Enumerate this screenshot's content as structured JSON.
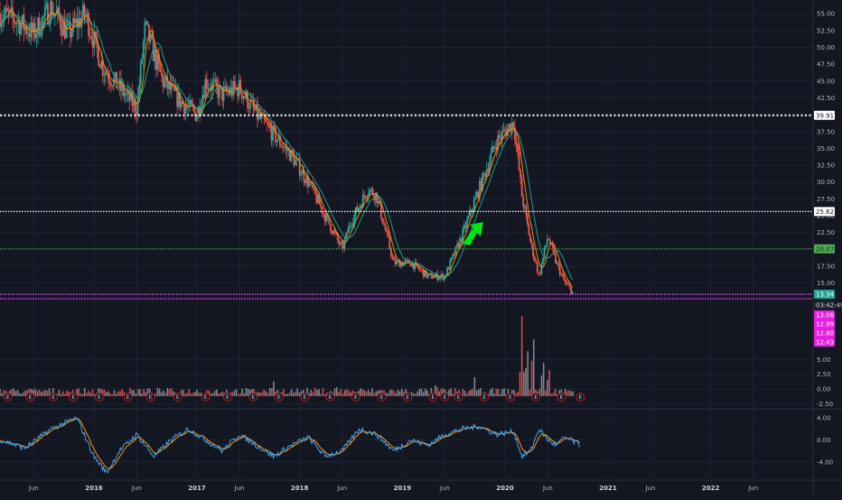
{
  "colors": {
    "background": "#131722",
    "grid": "#1f2330",
    "candle_up": "#26a69a",
    "candle_down": "#ef5350",
    "ma_fast": "#ff9800",
    "ma_slow": "#26a69a",
    "resistance_line": "#ffffff",
    "support_line": "#4caf50",
    "current_line": "#e040fb",
    "arrow": "#00e614",
    "vol_up": "#9598a1",
    "vol_down": "#ef5350",
    "osc_fast": "#42a5f5",
    "osc_slow": "#ff9800",
    "tag_magenta": "#e91ee3",
    "tag_teal": "#26a69a",
    "earnings_badge": "#b71c1c"
  },
  "chart_data": [
    {
      "type": "candlestick",
      "price_axis": {
        "ylim": [
          12.0,
          56.5
        ],
        "ticks": [
          "55.00",
          "52.50",
          "50.00",
          "47.50",
          "45.00",
          "42.50",
          "40.00",
          "37.50",
          "35.00",
          "32.50",
          "30.00",
          "27.50",
          "25.00",
          "22.50",
          "20.00",
          "17.50",
          "15.00"
        ],
        "tick_values": [
          55,
          52.5,
          50,
          47.5,
          45,
          42.5,
          40,
          37.5,
          35,
          32.5,
          30,
          27.5,
          25,
          22.5,
          20,
          17.5,
          15
        ]
      },
      "time_axis": {
        "xlim": [
          "2015-02-01",
          "2022-12-31"
        ],
        "labels": [
          {
            "text": "Jun",
            "date": "2015-06-01",
            "bold": false
          },
          {
            "text": "2016",
            "date": "2016-01-01",
            "bold": true
          },
          {
            "text": "Jun",
            "date": "2016-06-01",
            "bold": false
          },
          {
            "text": "2017",
            "date": "2017-01-01",
            "bold": true
          },
          {
            "text": "Jun",
            "date": "2017-06-01",
            "bold": false
          },
          {
            "text": "2018",
            "date": "2018-01-01",
            "bold": true
          },
          {
            "text": "Jun",
            "date": "2018-06-01",
            "bold": false
          },
          {
            "text": "2019",
            "date": "2019-01-01",
            "bold": true
          },
          {
            "text": "Jun",
            "date": "2019-06-01",
            "bold": false
          },
          {
            "text": "2020",
            "date": "2020-01-01",
            "bold": true
          },
          {
            "text": "Jun",
            "date": "2020-06-01",
            "bold": false
          },
          {
            "text": "2021",
            "date": "2021-01-01",
            "bold": true
          },
          {
            "text": "Jun",
            "date": "2021-06-01",
            "bold": false
          },
          {
            "text": "2022",
            "date": "2022-01-01",
            "bold": true
          },
          {
            "text": "Jun",
            "date": "2022-06-01",
            "bold": false
          }
        ]
      },
      "price_path": [
        [
          "2015-02-01",
          55
        ],
        [
          "2015-04-01",
          54
        ],
        [
          "2015-06-01",
          52
        ],
        [
          "2015-08-01",
          56
        ],
        [
          "2015-10-01",
          52
        ],
        [
          "2015-12-01",
          55
        ],
        [
          "2016-02-01",
          47
        ],
        [
          "2016-04-01",
          44
        ],
        [
          "2016-06-01",
          41
        ],
        [
          "2016-07-01",
          53
        ],
        [
          "2016-09-01",
          45
        ],
        [
          "2016-11-01",
          42
        ],
        [
          "2017-01-01",
          40
        ],
        [
          "2017-02-01",
          45
        ],
        [
          "2017-04-01",
          43
        ],
        [
          "2017-06-01",
          44
        ],
        [
          "2017-08-01",
          40
        ],
        [
          "2017-10-01",
          37
        ],
        [
          "2017-12-01",
          34
        ],
        [
          "2018-02-01",
          30
        ],
        [
          "2018-04-01",
          25
        ],
        [
          "2018-06-01",
          20
        ],
        [
          "2018-07-01",
          24
        ],
        [
          "2018-09-01",
          29
        ],
        [
          "2018-10-01",
          28
        ],
        [
          "2018-12-01",
          18
        ],
        [
          "2019-02-01",
          18
        ],
        [
          "2019-04-01",
          16
        ],
        [
          "2019-06-01",
          16
        ],
        [
          "2019-08-01",
          22
        ],
        [
          "2019-10-01",
          29
        ],
        [
          "2019-12-01",
          36
        ],
        [
          "2020-02-01",
          39
        ],
        [
          "2020-03-01",
          28
        ],
        [
          "2020-04-01",
          21
        ],
        [
          "2020-05-01",
          16
        ],
        [
          "2020-06-01",
          22
        ],
        [
          "2020-07-01",
          18
        ],
        [
          "2020-08-01",
          15
        ],
        [
          "2020-09-01",
          13.5
        ]
      ],
      "levels": [
        {
          "value": 39.91,
          "label": "39.91",
          "style": "resistance"
        },
        {
          "value": 25.62,
          "label": "25.62",
          "style": "resistance"
        },
        {
          "value": 20.07,
          "label": "20.07",
          "style": "support"
        },
        {
          "value": 13.34,
          "label": "13.34",
          "style": "current"
        }
      ],
      "current_price": {
        "value": 13.34,
        "label": "13.34",
        "countdown": "03:42:49"
      },
      "level_tags": [
        {
          "value": 12.2,
          "label": "13.06"
        },
        {
          "value": 11.4,
          "label": "12.99"
        },
        {
          "value": 10.6,
          "label": "12.80"
        },
        {
          "value": 9.8,
          "label": "12.43"
        }
      ]
    },
    {
      "type": "bar",
      "name": "volume",
      "secondary_axis": {
        "ticks": [
          "5.00",
          "2.50",
          "0.00",
          "-2.50"
        ],
        "tick_values": [
          5,
          2.5,
          0,
          -2.5
        ],
        "ylim": [
          -3.2,
          14.5
        ]
      },
      "spikes": [
        [
          "2020-03-01",
          13.5
        ],
        [
          "2020-03-20",
          9.5
        ],
        [
          "2020-04-10",
          12
        ],
        [
          "2020-05-15",
          7
        ],
        [
          "2020-06-05",
          5.5
        ],
        [
          "2019-09-15",
          3.2
        ],
        [
          "2017-10-01",
          2.5
        ],
        [
          "2018-05-10",
          2.2
        ],
        [
          "2019-05-01",
          2.6
        ]
      ],
      "earnings_markers": [
        "2015-03-01",
        "2015-05-20",
        "2015-08-10",
        "2015-10-20",
        "2016-01-20",
        "2016-05-01",
        "2016-07-20",
        "2016-10-25",
        "2017-02-01",
        "2017-04-20",
        "2017-07-20",
        "2017-10-20",
        "2018-01-20",
        "2018-04-20",
        "2018-07-20",
        "2018-10-20",
        "2019-01-20",
        "2019-04-20",
        "2019-06-01",
        "2019-07-20",
        "2019-10-20",
        "2020-01-20",
        "2020-04-20",
        "2020-07-20",
        "2020-09-25"
      ],
      "earnings_label": "E"
    },
    {
      "type": "line",
      "name": "oscillator",
      "axis": {
        "ticks": [
          "4.00",
          "0.00",
          "-4.00"
        ],
        "tick_values": [
          4,
          0,
          -4
        ],
        "ylim": [
          -7,
          5.5
        ]
      },
      "path": [
        [
          "2015-02-01",
          0
        ],
        [
          "2015-05-01",
          -1.5
        ],
        [
          "2015-08-01",
          2
        ],
        [
          "2015-11-01",
          4
        ],
        [
          "2016-01-01",
          -3
        ],
        [
          "2016-02-15",
          -6
        ],
        [
          "2016-04-01",
          -2
        ],
        [
          "2016-06-01",
          1
        ],
        [
          "2016-08-01",
          -3
        ],
        [
          "2016-10-01",
          0
        ],
        [
          "2016-12-01",
          2
        ],
        [
          "2017-02-01",
          0
        ],
        [
          "2017-04-01",
          -2
        ],
        [
          "2017-06-01",
          1
        ],
        [
          "2017-08-01",
          -1
        ],
        [
          "2017-10-01",
          -3
        ],
        [
          "2017-12-01",
          -1
        ],
        [
          "2018-02-01",
          0.5
        ],
        [
          "2018-04-01",
          -3
        ],
        [
          "2018-06-01",
          -2
        ],
        [
          "2018-08-01",
          2
        ],
        [
          "2018-10-01",
          1
        ],
        [
          "2018-12-01",
          -2
        ],
        [
          "2019-02-01",
          0
        ],
        [
          "2019-04-01",
          -1
        ],
        [
          "2019-06-01",
          1
        ],
        [
          "2019-08-01",
          2
        ],
        [
          "2019-10-01",
          2.5
        ],
        [
          "2019-12-01",
          1
        ],
        [
          "2020-02-01",
          1.5
        ],
        [
          "2020-03-01",
          -3
        ],
        [
          "2020-04-01",
          -2
        ],
        [
          "2020-05-01",
          2
        ],
        [
          "2020-06-01",
          0
        ],
        [
          "2020-07-01",
          -1
        ],
        [
          "2020-08-01",
          0.5
        ],
        [
          "2020-09-25",
          -1
        ]
      ]
    }
  ]
}
